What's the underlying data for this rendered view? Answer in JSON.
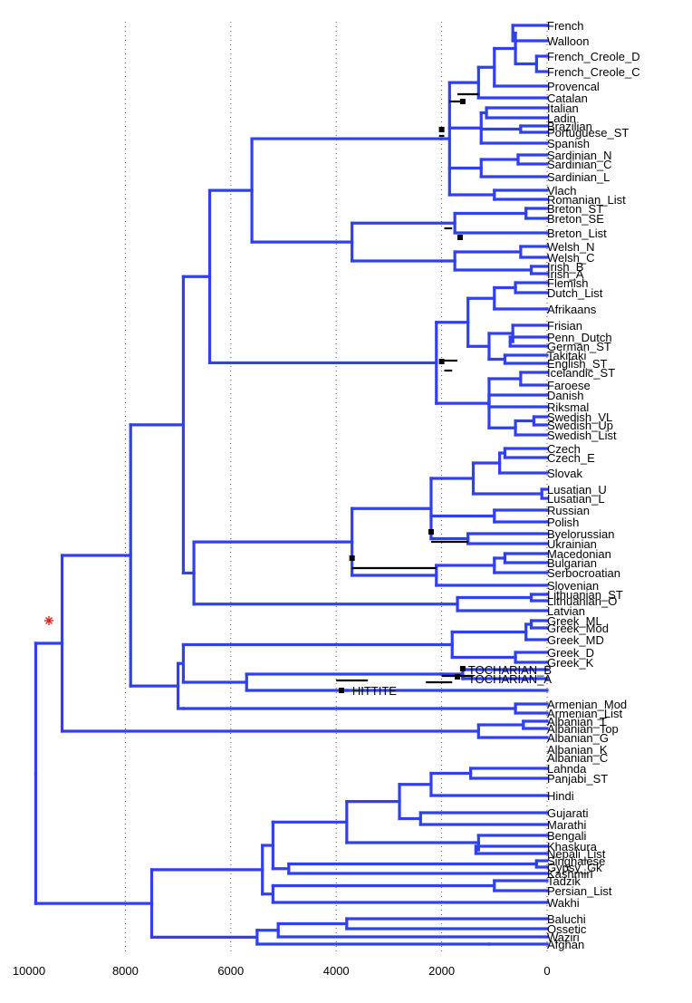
{
  "title": "",
  "axis": {
    "ticks": [
      10000,
      8000,
      6000,
      4000,
      2000,
      0
    ],
    "range": [
      10000,
      0
    ]
  },
  "colors": {
    "branch": "#3040f0",
    "bars": "#000000",
    "root_marker": "#e02020"
  },
  "leaves": [
    "French",
    "Walloon",
    "French_Creole_D",
    "French_Creole_C",
    "Provencal",
    "Catalan",
    "Italian",
    "Ladin",
    "Brazilian",
    "Portuguese_ST",
    "Spanish",
    "Sardinian_N",
    "Sardinian_C",
    "Sardinian_L",
    "Vlach",
    "Romanian_List",
    "Breton_ST",
    "Breton_SE",
    "Breton_List",
    "Welsh_N",
    "Welsh_C",
    "Irish_B",
    "Irish_A",
    "Flemish",
    "Dutch_List",
    "Afrikaans",
    "Frisian",
    "Penn_Dutch",
    "German_ST",
    "Takitaki",
    "English_ST",
    "Icelandic_ST",
    "Faroese",
    "Danish",
    "Riksmal",
    "Swedish_VL",
    "Swedish_Up",
    "Swedish_List",
    "Czech",
    "Czech_E",
    "Slovak",
    "Lusatian_U",
    "Lusatian_L",
    "Russian",
    "Polish",
    "Byelorussian",
    "Ukrainian",
    "Macedonian",
    "Bulgarian",
    "Serbocroatian",
    "Slovenian",
    "Lithuanian_ST",
    "Lithuanian_O",
    "Latvian",
    "Greek_ML",
    "Greek_Mod",
    "Greek_MD",
    "Greek_D",
    "Greek_K",
    "TOCHARIAN_B",
    "TOCHARIAN_A",
    "HITTITE",
    "Armenian_Mod",
    "Armenian_List",
    "Albanian_T",
    "Albanian_Top",
    "Albanian_G",
    "Albanian_K",
    "Albanian_C",
    "Lahnda",
    "Panjabi_ST",
    "Hindi",
    "Gujarati",
    "Marathi",
    "Bengali",
    "Khaskura",
    "Nepali_List",
    "Singhalese",
    "Gypsy_Gk",
    "Kashmiri",
    "Tadzik",
    "Persian_List",
    "Wakhi",
    "Baluchi",
    "Ossetic",
    "Waziri",
    "Afghan"
  ]
}
